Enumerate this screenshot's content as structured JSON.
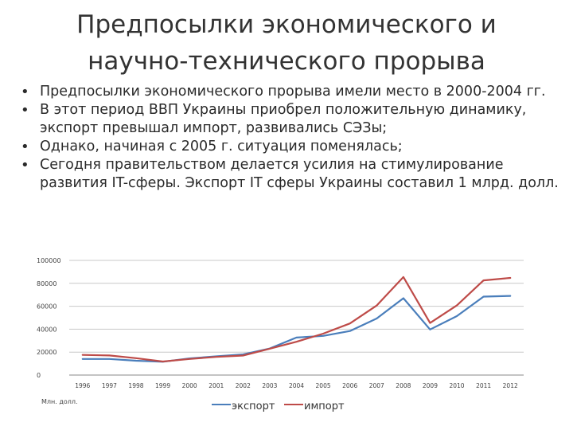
{
  "slide": {
    "title_line1": "Предпосылки экономического и",
    "title_line2": "научно-технического прорыва",
    "bullets": [
      "Предпосылки экономического прорыва имели место в 2000-2004 гг.",
      "В этот период ВВП Украины приобрел положительную динамику, экспорт превышал импорт, развивались СЭЗы;",
      "Однако, начиная с 2005 г. ситуация поменялась;",
      "Сегодня правительством делается усилия на стимулирование развития IT-сферы. Экспорт IT сферы Украины составил 1 млрд. долл."
    ]
  },
  "chart_data": {
    "type": "line",
    "categories": [
      "1996",
      "1997",
      "1998",
      "1999",
      "2000",
      "2001",
      "2002",
      "2003",
      "2004",
      "2005",
      "2006",
      "2007",
      "2008",
      "2009",
      "2010",
      "2011",
      "2012"
    ],
    "series": [
      {
        "name": "экспорт",
        "color": "#4a7ebb",
        "values": [
          14000,
          14000,
          12500,
          11600,
          14500,
          16300,
          18000,
          23100,
          32700,
          34200,
          38400,
          49300,
          67000,
          39700,
          51400,
          68400,
          69000
        ]
      },
      {
        "name": "импорт",
        "color": "#be4b48",
        "values": [
          17600,
          17100,
          14700,
          11800,
          14000,
          15800,
          17000,
          23000,
          29000,
          36100,
          45000,
          60600,
          85500,
          45400,
          60700,
          82600,
          84700
        ]
      }
    ],
    "ylim": [
      0,
      100000
    ],
    "yticks": [
      "0",
      "20000",
      "40000",
      "60000",
      "80000",
      "100000"
    ],
    "ylabel": "Млн. долл.",
    "grid": true,
    "legend": "bottom"
  }
}
